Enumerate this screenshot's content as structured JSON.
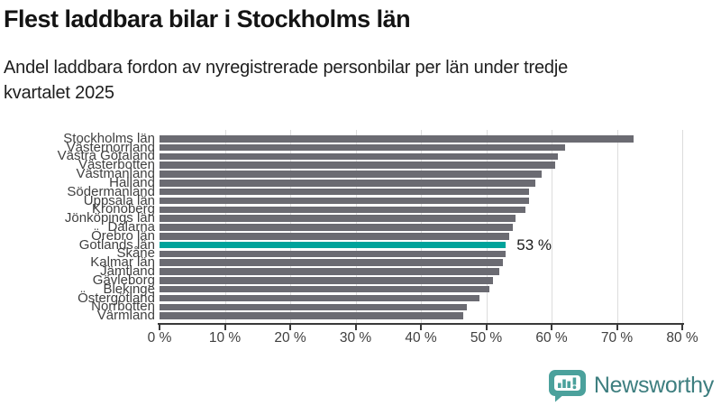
{
  "chart_data": {
    "type": "bar",
    "orientation": "horizontal",
    "title": "Flest laddbara bilar i Stockholms län",
    "subtitle_lines": [
      "Andel laddbara fordon av nyregistrerade personbilar per län under tredje",
      "kvartalet 2025"
    ],
    "categories": [
      "Stockholms län",
      "Västernorrland",
      "Västra Götaland",
      "Västerbotten",
      "Västmanland",
      "Halland",
      "Södermanland",
      "Uppsala län",
      "Kronoberg",
      "Jönköpings län",
      "Dalarna",
      "Örebro län",
      "Gotlands län",
      "Skåne",
      "Kalmar län",
      "Jämtland",
      "Gävleborg",
      "Blekinge",
      "Östergötland",
      "Norrbotten",
      "Värmland"
    ],
    "values": [
      72.5,
      62,
      61,
      60.5,
      58.5,
      57.5,
      56.5,
      56.5,
      56,
      54.5,
      54,
      53.5,
      53,
      53,
      52.5,
      52,
      51,
      50.5,
      49,
      47,
      46.5
    ],
    "unit": "%",
    "highlight": {
      "category": "Gotlands län",
      "index": 12,
      "label": "53 %"
    },
    "xlim": [
      0,
      80
    ],
    "xticks": [
      0,
      10,
      20,
      30,
      40,
      50,
      60,
      70,
      80
    ],
    "xtick_labels": [
      "0 %",
      "10 %",
      "20 %",
      "30 %",
      "40 %",
      "50 %",
      "60 %",
      "70 %",
      "80 %"
    ],
    "grid": true,
    "legend": "none",
    "colors": {
      "bar": "#6b6b72",
      "highlight": "#00a39b",
      "gridline": "#dcdcdc",
      "axis": "#3a3a3a",
      "annotation": "#1a1a1a"
    }
  },
  "footer": {
    "brand": "Newsworthy",
    "icon": "newsworthy-chart-bubble-icon",
    "brand_color": "#3d7e7f",
    "icon_color": "#4ba19c"
  }
}
